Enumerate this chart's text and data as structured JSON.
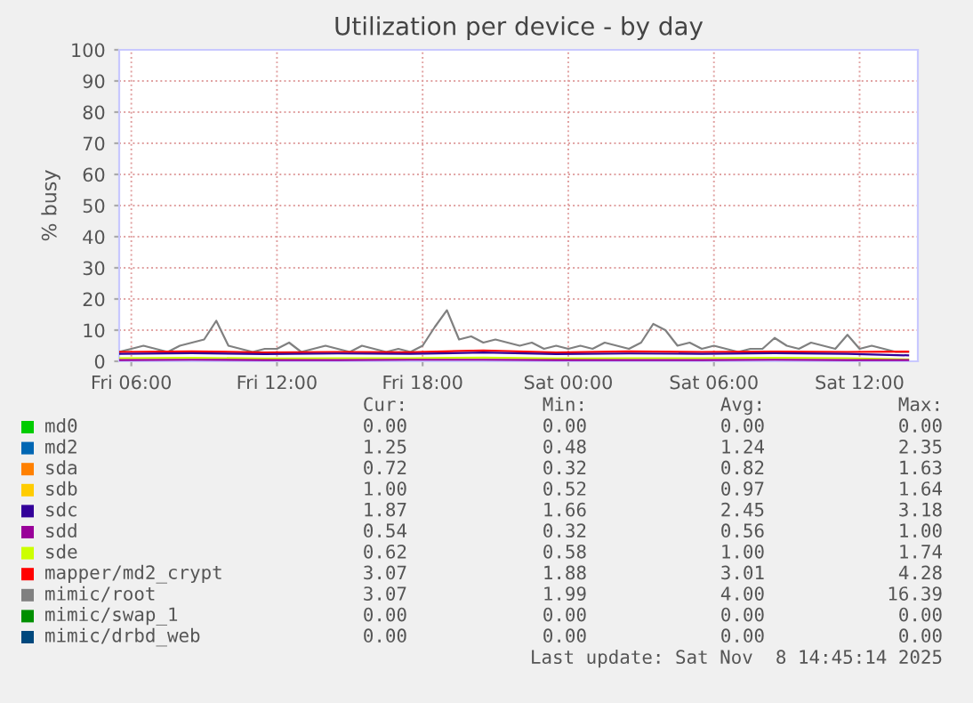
{
  "chart_data": {
    "type": "line",
    "title": "Utilization per device - by day",
    "ylabel": "% busy",
    "x": [
      "2025-11-07T05:30",
      "2025-11-07T06:00",
      "2025-11-07T06:30",
      "2025-11-07T07:00",
      "2025-11-07T07:30",
      "2025-11-07T08:00",
      "2025-11-07T08:30",
      "2025-11-07T09:00",
      "2025-11-07T09:30",
      "2025-11-07T10:00",
      "2025-11-07T10:30",
      "2025-11-07T11:00",
      "2025-11-07T11:30",
      "2025-11-07T12:00",
      "2025-11-07T12:30",
      "2025-11-07T13:00",
      "2025-11-07T13:30",
      "2025-11-07T14:00",
      "2025-11-07T14:30",
      "2025-11-07T15:00",
      "2025-11-07T15:30",
      "2025-11-07T16:00",
      "2025-11-07T16:30",
      "2025-11-07T17:00",
      "2025-11-07T17:30",
      "2025-11-07T18:00",
      "2025-11-07T18:30",
      "2025-11-07T19:00",
      "2025-11-07T19:30",
      "2025-11-07T20:00",
      "2025-11-07T20:30",
      "2025-11-07T21:00",
      "2025-11-07T21:30",
      "2025-11-07T22:00",
      "2025-11-07T22:30",
      "2025-11-07T23:00",
      "2025-11-07T23:30",
      "2025-11-08T00:00",
      "2025-11-08T00:30",
      "2025-11-08T01:00",
      "2025-11-08T01:30",
      "2025-11-08T02:00",
      "2025-11-08T02:30",
      "2025-11-08T03:00",
      "2025-11-08T03:30",
      "2025-11-08T04:00",
      "2025-11-08T04:30",
      "2025-11-08T05:00",
      "2025-11-08T05:30",
      "2025-11-08T06:00",
      "2025-11-08T06:30",
      "2025-11-08T07:00",
      "2025-11-08T07:30",
      "2025-11-08T08:00",
      "2025-11-08T08:30",
      "2025-11-08T09:00",
      "2025-11-08T09:30",
      "2025-11-08T10:00",
      "2025-11-08T10:30",
      "2025-11-08T11:00",
      "2025-11-08T11:30",
      "2025-11-08T12:00",
      "2025-11-08T12:30",
      "2025-11-08T13:00",
      "2025-11-08T13:30",
      "2025-11-08T14:00"
    ],
    "xlim": [
      "2025-11-07T05:30",
      "2025-11-08T14:24"
    ],
    "xticks": [
      {
        "value": "2025-11-07T06:00",
        "label": "Fri 06:00"
      },
      {
        "value": "2025-11-07T12:00",
        "label": "Fri 12:00"
      },
      {
        "value": "2025-11-07T18:00",
        "label": "Fri 18:00"
      },
      {
        "value": "2025-11-08T00:00",
        "label": "Sat 00:00"
      },
      {
        "value": "2025-11-08T06:00",
        "label": "Sat 06:00"
      },
      {
        "value": "2025-11-08T12:00",
        "label": "Sat 12:00"
      }
    ],
    "ylim": [
      0,
      100
    ],
    "yticks": [
      0,
      10,
      20,
      30,
      40,
      50,
      60,
      70,
      80,
      90,
      100
    ],
    "grid": true,
    "legend": "bottom",
    "line_style": "solid",
    "series": [
      {
        "name": "md0",
        "color": "#00cc00",
        "values": [
          null,
          null,
          null,
          null,
          null,
          null,
          null,
          null,
          null,
          null,
          null,
          null,
          null,
          null,
          null,
          null,
          null,
          null,
          null,
          null,
          null,
          null,
          null,
          null,
          null,
          null,
          null,
          null,
          null,
          null,
          null,
          null,
          null,
          null,
          null,
          null,
          null,
          null,
          null,
          null,
          null,
          null,
          null,
          null,
          null,
          null,
          null,
          null,
          null,
          null,
          null,
          null,
          null,
          null,
          null,
          null,
          null,
          null,
          null,
          null,
          null,
          null,
          null,
          null,
          null,
          null
        ]
      },
      {
        "name": "md2",
        "color": "#0066b3",
        "values": [
          null,
          null,
          null,
          null,
          null,
          null,
          null,
          null,
          null,
          null,
          null,
          null,
          null,
          null,
          null,
          null,
          null,
          null,
          null,
          null,
          null,
          null,
          null,
          null,
          null,
          null,
          null,
          null,
          null,
          null,
          null,
          null,
          null,
          null,
          null,
          null,
          null,
          null,
          null,
          null,
          null,
          null,
          null,
          null,
          null,
          null,
          null,
          null,
          null,
          null,
          null,
          null,
          null,
          null,
          null,
          null,
          null,
          null,
          null,
          null,
          null,
          null,
          null,
          null,
          null,
          null
        ]
      },
      {
        "name": "sda",
        "color": "#ff8000",
        "values": [
          null,
          null,
          null,
          null,
          null,
          null,
          null,
          null,
          null,
          null,
          null,
          null,
          null,
          null,
          null,
          null,
          null,
          null,
          null,
          null,
          null,
          null,
          null,
          null,
          null,
          null,
          null,
          null,
          null,
          null,
          null,
          null,
          null,
          null,
          null,
          null,
          null,
          null,
          null,
          null,
          null,
          null,
          null,
          null,
          null,
          null,
          null,
          null,
          null,
          null,
          null,
          null,
          null,
          null,
          null,
          null,
          null,
          null,
          null,
          null,
          null,
          null,
          null,
          null,
          null,
          null
        ]
      },
      {
        "name": "sdb",
        "color": "#ffcc00",
        "values": [
          null,
          null,
          null,
          null,
          null,
          null,
          null,
          null,
          null,
          null,
          null,
          null,
          null,
          null,
          null,
          null,
          null,
          null,
          null,
          null,
          null,
          null,
          null,
          null,
          null,
          null,
          null,
          null,
          null,
          null,
          null,
          null,
          null,
          null,
          null,
          null,
          null,
          null,
          null,
          null,
          null,
          null,
          null,
          null,
          null,
          null,
          null,
          null,
          null,
          null,
          null,
          null,
          null,
          null,
          null,
          null,
          null,
          null,
          null,
          null,
          null,
          null,
          null,
          null,
          null,
          null
        ]
      },
      {
        "name": "sdc",
        "color": "#330099",
        "x": [
          "2025-11-07T05:30",
          "2025-11-07T08:30",
          "2025-11-07T11:30",
          "2025-11-07T14:30",
          "2025-11-07T17:30",
          "2025-11-07T20:30",
          "2025-11-07T23:30",
          "2025-11-08T02:30",
          "2025-11-08T05:30",
          "2025-11-08T08:30",
          "2025-11-08T11:30",
          "2025-11-08T14:00"
        ],
        "values": [
          2.4,
          2.6,
          2.3,
          2.5,
          2.4,
          2.8,
          2.3,
          2.5,
          2.4,
          2.6,
          2.4,
          1.9
        ]
      },
      {
        "name": "sdd",
        "color": "#990099",
        "x": [
          "2025-11-07T05:30",
          "2025-11-07T08:30",
          "2025-11-07T11:30",
          "2025-11-07T14:30",
          "2025-11-07T17:30",
          "2025-11-07T20:30",
          "2025-11-07T23:30",
          "2025-11-08T02:30",
          "2025-11-08T05:30",
          "2025-11-08T08:30",
          "2025-11-08T11:30",
          "2025-11-08T14:00"
        ],
        "values": [
          0.4,
          0.5,
          0.4,
          0.4,
          0.5,
          0.5,
          0.4,
          0.4,
          0.4,
          0.5,
          0.4,
          0.4
        ]
      },
      {
        "name": "sde",
        "color": "#ccff00",
        "x": [
          "2025-11-07T05:30",
          "2025-11-07T08:30",
          "2025-11-07T11:30",
          "2025-11-07T14:30",
          "2025-11-07T17:30",
          "2025-11-07T20:30",
          "2025-11-07T23:30",
          "2025-11-08T02:30",
          "2025-11-08T05:30",
          "2025-11-08T08:30",
          "2025-11-08T11:30",
          "2025-11-08T14:00"
        ],
        "values": [
          1.0,
          1.1,
          0.9,
          1.0,
          1.0,
          1.2,
          0.9,
          1.0,
          1.0,
          1.1,
          1.0,
          0.6
        ]
      },
      {
        "name": "mapper/md2_crypt",
        "color": "#ff0000",
        "x": [
          "2025-11-07T05:30",
          "2025-11-07T08:30",
          "2025-11-07T11:30",
          "2025-11-07T14:30",
          "2025-11-07T17:30",
          "2025-11-07T20:30",
          "2025-11-07T23:30",
          "2025-11-08T02:30",
          "2025-11-08T05:30",
          "2025-11-08T08:30",
          "2025-11-08T11:30",
          "2025-11-08T14:00"
        ],
        "values": [
          3.0,
          3.2,
          2.8,
          3.0,
          2.9,
          3.5,
          2.8,
          3.2,
          3.0,
          3.1,
          3.0,
          3.1
        ]
      },
      {
        "name": "mimic/root",
        "color": "#808080",
        "values": [
          3,
          4,
          5,
          4,
          3,
          5,
          6,
          7,
          13,
          5,
          4,
          3,
          4,
          4,
          6,
          3,
          4,
          5,
          4,
          3,
          5,
          4,
          3,
          4,
          3,
          5,
          11,
          16.4,
          7,
          8,
          6,
          7,
          6,
          5,
          6,
          4,
          5,
          4,
          5,
          4,
          6,
          5,
          4,
          6,
          12,
          10,
          5,
          6,
          4,
          5,
          4,
          3,
          4,
          4,
          7.5,
          5,
          4,
          6,
          5,
          4,
          8.5,
          4,
          5,
          4,
          3,
          3
        ]
      },
      {
        "name": "mimic/swap_1",
        "color": "#008f00",
        "values": [
          null,
          null,
          null,
          null,
          null,
          null,
          null,
          null,
          null,
          null,
          null,
          null,
          null,
          null,
          null,
          null,
          null,
          null,
          null,
          null,
          null,
          null,
          null,
          null,
          null,
          null,
          null,
          null,
          null,
          null,
          null,
          null,
          null,
          null,
          null,
          null,
          null,
          null,
          null,
          null,
          null,
          null,
          null,
          null,
          null,
          null,
          null,
          null,
          null,
          null,
          null,
          null,
          null,
          null,
          null,
          null,
          null,
          null,
          null,
          null,
          null,
          null,
          null,
          null,
          null,
          null
        ]
      },
      {
        "name": "mimic/drbd_web",
        "color": "#00487d",
        "values": [
          null,
          null,
          null,
          null,
          null,
          null,
          null,
          null,
          null,
          null,
          null,
          null,
          null,
          null,
          null,
          null,
          null,
          null,
          null,
          null,
          null,
          null,
          null,
          null,
          null,
          null,
          null,
          null,
          null,
          null,
          null,
          null,
          null,
          null,
          null,
          null,
          null,
          null,
          null,
          null,
          null,
          null,
          null,
          null,
          null,
          null,
          null,
          null,
          null,
          null,
          null,
          null,
          null,
          null,
          null,
          null,
          null,
          null,
          null,
          null,
          null,
          null,
          null,
          null,
          null,
          null
        ]
      }
    ],
    "annotations": [
      "Cur:",
      "Min:",
      "Avg:",
      "Max:",
      "0.00",
      "0.00",
      "0.00",
      "0.00",
      "1.25",
      "0.48",
      "1.24",
      "2.35",
      "0.72",
      "0.32",
      "0.82",
      "1.63",
      "1.00",
      "0.52",
      "0.97",
      "1.64",
      "1.87",
      "1.66",
      "2.45",
      "3.18",
      "0.54",
      "0.32",
      "0.56",
      "1.00",
      "0.62",
      "0.58",
      "1.00",
      "1.74",
      "3.07",
      "1.88",
      "3.01",
      "4.28",
      "3.07",
      "1.99",
      "4.00",
      "16.39",
      "0.00",
      "0.00",
      "0.00",
      "0.00",
      "0.00",
      "0.00",
      "0.00",
      "0.00",
      "Last update: Sat Nov  8 14:45:14 2025"
    ]
  }
}
